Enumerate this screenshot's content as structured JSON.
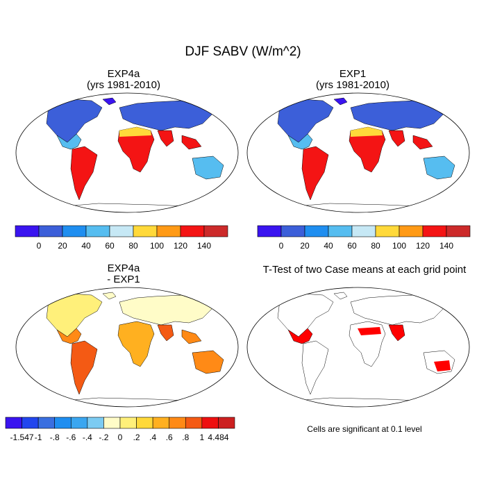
{
  "title": "DJF SABV (W/m^2)",
  "panels": [
    {
      "id": "p1",
      "title_line1": "EXP4a",
      "title_line2": "(yrs 1981-2010)"
    },
    {
      "id": "p2",
      "title_line1": "EXP1",
      "title_line2": "(yrs 1981-2010)"
    },
    {
      "id": "p3",
      "title_line1": "EXP4a",
      "title_line2": "- EXP1"
    },
    {
      "id": "p4",
      "title_line1": "T-Test of two Case means at each grid point",
      "title_line2": ""
    }
  ],
  "significance_note": "Cells are significant at 0.1 level",
  "colorbars": {
    "absolute": {
      "colors": [
        "#3a14f0",
        "#3c5fd9",
        "#1f8ef0",
        "#56bdf0",
        "#c6e8f5",
        "#ffd93a",
        "#ff9a16",
        "#f41414",
        "#cc2a2a"
      ],
      "labels": [
        "0",
        "20",
        "40",
        "60",
        "80",
        "100",
        "120",
        "140"
      ]
    },
    "difference": {
      "colors": [
        "#3a14f0",
        "#2246ee",
        "#3a6fe0",
        "#1f8ef0",
        "#3aa6f0",
        "#7ccbf2",
        "#fffcc8",
        "#fff07a",
        "#ffd93a",
        "#ffb020",
        "#ff8a16",
        "#f45a14",
        "#ee1010",
        "#cc2020"
      ],
      "labels": [
        "-1.547",
        "-1",
        "-.8",
        "-.6",
        "-.4",
        "-.2",
        "0",
        ".2",
        ".4",
        ".6",
        ".8",
        "1",
        "4.484"
      ]
    }
  },
  "map_colors": {
    "coast": "#000000",
    "significant": "#ff0000"
  }
}
